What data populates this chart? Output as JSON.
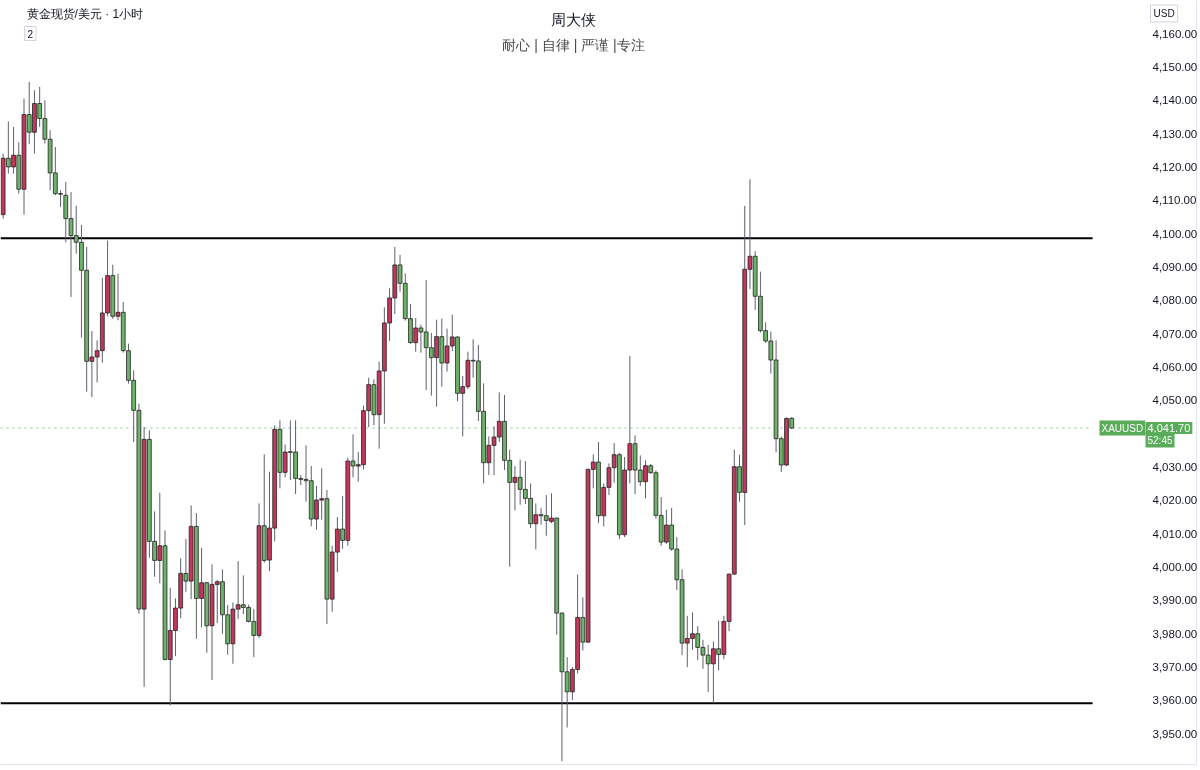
{
  "chart_data": {
    "type": "candlestick",
    "title": "周大侠",
    "subtitle": "耐心 | 自律 | 严谨 |专注",
    "ylabel": "USD",
    "annotations": [
      "黄金现货/美元 · 1小时",
      "2",
      {
        "text": "4,041.70",
        "y": 4041.7
      },
      {
        "text": "52:45",
        "y": 4041.7
      }
    ],
    "categories": [
      null,
      null,
      null,
      null,
      null,
      null,
      null,
      null,
      null,
      null,
      null,
      null,
      null,
      null,
      null,
      null,
      null,
      null,
      null,
      null,
      null,
      null,
      null,
      null,
      null,
      null,
      null,
      null,
      null,
      null,
      null,
      null,
      null,
      null,
      null,
      null,
      null,
      null,
      null,
      null,
      null,
      null,
      null,
      null,
      null,
      null,
      null,
      null,
      null,
      null,
      null,
      null,
      null,
      null,
      null,
      null,
      null,
      null,
      null,
      null,
      null,
      null,
      null,
      null,
      null,
      null,
      null,
      null,
      null,
      null,
      null,
      null,
      null,
      null,
      null,
      null,
      null,
      null,
      null,
      null,
      null,
      null,
      null,
      null,
      null,
      null,
      null,
      null,
      null,
      null,
      null,
      null,
      null,
      null,
      null,
      null,
      null,
      null,
      null,
      null,
      null,
      null,
      null,
      null,
      null,
      null,
      null,
      null,
      null,
      null,
      null,
      null,
      null,
      null,
      null,
      null,
      null,
      null,
      null,
      null,
      null,
      null,
      null,
      null,
      null,
      null,
      null,
      null,
      null,
      null,
      null,
      null,
      null,
      null,
      null,
      null,
      null,
      null,
      null,
      null,
      null,
      null,
      null,
      null,
      null,
      null,
      null,
      null,
      null,
      null,
      null,
      null,
      null,
      null,
      null,
      null,
      null,
      null,
      null,
      null,
      null,
      null,
      null,
      null,
      null,
      null,
      null,
      null,
      null,
      null,
      null,
      null,
      null,
      null,
      null,
      null,
      null,
      null,
      null,
      null,
      null,
      null,
      null,
      null,
      null,
      null,
      null,
      null,
      null,
      null,
      null,
      null,
      null,
      null,
      null,
      null,
      null,
      null,
      null,
      null,
      null,
      null,
      null,
      null,
      null,
      null,
      null,
      null,
      null,
      null,
      null,
      null,
      null,
      null,
      null,
      null,
      null,
      null,
      null,
      null,
      null,
      null,
      null,
      null,
      null,
      null,
      null,
      null,
      null
    ],
    "ohlc": [
      [
        4105.7,
        4124,
        4104.5,
        4122.6
      ],
      [
        4122.6,
        4133.6,
        4118,
        4120
      ],
      [
        4120,
        4132,
        4118,
        4123.5
      ],
      [
        4123.5,
        4127.4,
        4112,
        4113.3
      ],
      [
        4113.3,
        4140.5,
        4105.7,
        4135.7
      ],
      [
        4135.7,
        4145.5,
        4126.8,
        4130.4
      ],
      [
        4130.4,
        4143,
        4124,
        4139
      ],
      [
        4139,
        4144,
        4132,
        4134.5
      ],
      [
        4134.5,
        4140,
        4127,
        4128.3
      ],
      [
        4128.3,
        4131,
        4113,
        4118.2
      ],
      [
        4118.2,
        4126,
        4111.5,
        4112
      ],
      [
        4112,
        4113,
        4108,
        4111.8
      ],
      [
        4111.5,
        4115.5,
        4097.4,
        4104.5
      ],
      [
        4104.5,
        4112.5,
        4081,
        4099.4
      ],
      [
        4099.4,
        4108.3,
        4094,
        4097.4
      ],
      [
        4097.4,
        4102.6,
        4068.8,
        4089
      ],
      [
        4089,
        4096,
        4052.6,
        4061.7
      ],
      [
        4061.7,
        4070.8,
        4051,
        4063
      ],
      [
        4063,
        4068,
        4055.4,
        4064.9
      ],
      [
        4064.9,
        4086.7,
        4061.3,
        4076.2
      ],
      [
        4076.2,
        4097.9,
        4075.2,
        4087.4
      ],
      [
        4087.4,
        4090.7,
        4074.4,
        4075.2
      ],
      [
        4075.2,
        4088,
        4074,
        4076.4
      ],
      [
        4076.4,
        4079.5,
        4064.3,
        4064.9
      ],
      [
        4064.9,
        4067,
        4055,
        4056
      ],
      [
        4056,
        4059,
        4037.5,
        4047
      ],
      [
        4047,
        4049,
        3986,
        3987.4
      ],
      [
        3987.4,
        4042,
        3964.1,
        4038.3
      ],
      [
        4038.3,
        4041,
        4002.8,
        4007.7
      ],
      [
        4007.7,
        4016.7,
        3997.1,
        4002
      ],
      [
        4002,
        4022.3,
        3995.1,
        4006.4
      ],
      [
        4006.4,
        4011,
        3972,
        3972.3
      ],
      [
        3972.3,
        3993.8,
        3958.5,
        3981
      ],
      [
        3981,
        3990.6,
        3973.3,
        3987.7
      ],
      [
        3987.7,
        4002.6,
        3984.7,
        3998.1
      ],
      [
        3998.1,
        4008.4,
        3992.6,
        3995.8
      ],
      [
        3995.8,
        4018.5,
        3990.4,
        4012.2
      ],
      [
        4012.2,
        4016.2,
        3978.5,
        3990.6
      ],
      [
        3990.6,
        4005.8,
        3981.9,
        3995.3
      ],
      [
        3995.3,
        3995.5,
        3974.3,
        3982.4
      ],
      [
        3982.4,
        4000.8,
        3966.1,
        3994.8
      ],
      [
        3994.8,
        3996.1,
        3983.2,
        3995.6
      ],
      [
        3995.6,
        3999.3,
        3980,
        3985.7
      ],
      [
        3985.7,
        3988.6,
        3973.7,
        3977
      ],
      [
        3977,
        3989.4,
        3971,
        3987.4
      ],
      [
        3987.4,
        4001.8,
        3984.4,
        3988.7
      ],
      [
        3988.7,
        3997.5,
        3985.9,
        3987.9
      ],
      [
        3987.9,
        3988.7,
        3983.4,
        3983.7
      ],
      [
        3983.7,
        3987.4,
        3973,
        3979.5
      ],
      [
        3979.5,
        4019.1,
        3978.7,
        4012.4
      ],
      [
        4012.4,
        4033.8,
        4001.3,
        4002
      ],
      [
        4002.1,
        4028.6,
        3998.8,
        4011.7
      ],
      [
        4011.7,
        4042.5,
        4007.7,
        4041.3
      ],
      [
        4041.3,
        4044,
        4023.6,
        4028.4
      ],
      [
        4028.4,
        4036.8,
        4026.9,
        4034.5
      ],
      [
        4034.6,
        4044,
        4026.1,
        4034.4
      ],
      [
        4034.5,
        4044,
        4021.9,
        4026.6
      ],
      [
        4026.6,
        4027.6,
        4024.6,
        4026.3
      ],
      [
        4026.3,
        4036.5,
        4019.6,
        4025.9
      ],
      [
        4025.9,
        4030.3,
        4012.2,
        4014.4
      ],
      [
        4014.4,
        4024.3,
        4011.2,
        4020.1
      ],
      [
        4020.1,
        4029.6,
        4014.2,
        4020.5
      ],
      [
        4020.5,
        4023.1,
        3982.9,
        3990.4
      ],
      [
        3990.4,
        4006.4,
        3986.6,
        4004.5
      ],
      [
        4004.5,
        4015,
        3998.5,
        4011.4
      ],
      [
        4011.4,
        4021.3,
        4005.5,
        4008
      ],
      [
        4008,
        4032.8,
        4006.4,
        4031.8
      ],
      [
        4031.8,
        4039.8,
        4026.9,
        4030.3
      ],
      [
        4030.3,
        4034.5,
        4025.6,
        4030.7
      ],
      [
        4030.7,
        4048.4,
        4029.3,
        4046.9
      ],
      [
        4046.9,
        4056.8,
        4042,
        4054.7
      ],
      [
        4054.7,
        4056.3,
        4042.5,
        4045.7
      ],
      [
        4045.7,
        4061.6,
        4035.5,
        4058.8
      ],
      [
        4058.8,
        4077.9,
        4043,
        4073.2
      ],
      [
        4073.2,
        4083.6,
        4067.8,
        4080.7
      ],
      [
        4080.7,
        4096,
        4075.9,
        4090.6
      ],
      [
        4090.6,
        4093.6,
        4082.6,
        4085.1
      ],
      [
        4085.1,
        4088.1,
        4073.9,
        4074.5
      ],
      [
        4074.5,
        4078.9,
        4067,
        4067.3
      ],
      [
        4067.3,
        4074.7,
        4064.6,
        4071.7
      ],
      [
        4071.7,
        4072.7,
        4064.3,
        4070.5
      ],
      [
        4070.5,
        4086.1,
        4053.1,
        4065.8
      ],
      [
        4065.8,
        4070.2,
        4051.4,
        4062.8
      ],
      [
        4062.8,
        4074.2,
        4048.1,
        4069.1
      ],
      [
        4069.1,
        4074.5,
        4054.1,
        4061.2
      ],
      [
        4061.2,
        4071.5,
        4058.6,
        4066.3
      ],
      [
        4066.3,
        4075.7,
        4064.8,
        4069
      ],
      [
        4069,
        4069.2,
        4049.7,
        4052.1
      ],
      [
        4052.1,
        4057.3,
        4039.2,
        4054.1
      ],
      [
        4054.1,
        4064.6,
        4053.4,
        4062
      ],
      [
        4062,
        4068.3,
        4056.8,
        4061.8
      ],
      [
        4061.8,
        4066.6,
        4043.8,
        4046.7
      ],
      [
        4046.7,
        4055.1,
        4025.1,
        4031.3
      ],
      [
        4031.3,
        4039.2,
        4027.6,
        4036.5
      ],
      [
        4036.5,
        4042.2,
        4027.6,
        4039
      ],
      [
        4039,
        4052.4,
        4037.5,
        4043.7
      ],
      [
        4043.7,
        4051.6,
        4029.1,
        4032
      ],
      [
        4032,
        4035.2,
        4000.1,
        4025.4
      ],
      [
        4025.4,
        4030.3,
        4017,
        4026.9
      ],
      [
        4026.9,
        4032.2,
        4018.7,
        4023.3
      ],
      [
        4023.3,
        4031.8,
        4018.9,
        4020.6
      ],
      [
        4020.6,
        4025.1,
        4011.7,
        4013
      ],
      [
        4013,
        4019.1,
        4005.3,
        4015.7
      ],
      [
        4015.7,
        4017.7,
        4012.7,
        4015.4
      ],
      [
        4015.4,
        4021.6,
        4009.4,
        4014
      ],
      [
        4013.7,
        4022.1,
        4013.2,
        4014.7
      ],
      [
        4014.7,
        4014.8,
        3979.7,
        3986.2
      ],
      [
        3986.2,
        3986.4,
        3941.8,
        3968.6
      ],
      [
        3968.6,
        3973,
        3951.9,
        3962.6
      ],
      [
        3962.6,
        3970,
        3960.1,
        3969.3
      ],
      [
        3969.3,
        3997.8,
        3968.1,
        3984.9
      ],
      [
        3984.9,
        3990.9,
        3975,
        3977.5
      ],
      [
        3977.5,
        4029.5,
        3977.3,
        4029.3
      ],
      [
        4029.3,
        4033.8,
        4023.6,
        4031.5
      ],
      [
        4031.5,
        4037.5,
        4013.2,
        4015.4
      ],
      [
        4015.4,
        4025.1,
        4012.2,
        4023.9
      ],
      [
        4023.9,
        4031.1,
        4021.6,
        4029.8
      ],
      [
        4029.8,
        4037.2,
        4025.3,
        4033.7
      ],
      [
        4033.7,
        4034.2,
        4008.4,
        4009.7
      ],
      [
        4009.7,
        4033,
        4009,
        4029.1
      ],
      [
        4029.1,
        4063.3,
        4025.1,
        4037
      ],
      [
        4037,
        4039.5,
        4021.9,
        4029.1
      ],
      [
        4029.1,
        4033.5,
        4024.3,
        4025.6
      ],
      [
        4025.6,
        4032,
        4020.6,
        4030.4
      ],
      [
        4030.4,
        4030.9,
        4028,
        4028.3
      ],
      [
        4028.3,
        4029,
        4014.5,
        4015.5
      ],
      [
        4015.5,
        4021,
        4006.4,
        4007.5
      ],
      [
        4007.5,
        4017.2,
        4007,
        4012.6
      ],
      [
        4012.6,
        4017.7,
        4004.9,
        4005.4
      ],
      [
        4005.4,
        4009,
        3993.1,
        3996.2
      ],
      [
        3996.2,
        3999.3,
        3973.6,
        3977.2
      ],
      [
        3977.2,
        3985.4,
        3970,
        3978.6
      ],
      [
        3978.6,
        3986.4,
        3975.2,
        3980
      ],
      [
        3980,
        3982.3,
        3972.1,
        3975.9
      ],
      [
        3975.9,
        3978.2,
        3969.5,
        3973.6
      ],
      [
        3973.6,
        3976.7,
        3962.5,
        3971
      ],
      [
        3971,
        3977.7,
        3959.2,
        3975.5
      ],
      [
        3975.5,
        3983.9,
        3969,
        3973.8
      ],
      [
        3973.8,
        3985.4,
        3972.4,
        3983.7
      ],
      [
        3983.7,
        3998,
        3980.8,
        3997.9
      ],
      [
        3997.9,
        4035.2,
        3997.7,
        4030.1
      ],
      [
        4030.1,
        4033.7,
        4019.6,
        4022.4
      ],
      [
        4022.4,
        4108.3,
        4012.6,
        4089.3
      ],
      [
        4089.3,
        4116.3,
        4083.4,
        4093.2
      ],
      [
        4093.2,
        4094.7,
        4077.1,
        4081.2
      ],
      [
        4081.2,
        4088.6,
        4070.3,
        4070.9
      ],
      [
        4070.9,
        4073.4,
        4067.2,
        4067.8
      ],
      [
        4067.8,
        4070.6,
        4058,
        4062.1
      ],
      [
        4062.1,
        4068,
        4034.4,
        4038.5
      ],
      [
        4038.5,
        4039.1,
        4028.5,
        4030.6
      ],
      [
        4030.6,
        4044.8,
        4030.4,
        4044.6
      ],
      [
        4044.6,
        4045,
        4041.4,
        4041.7
      ],
      null,
      null,
      null,
      null,
      null,
      null,
      null,
      null,
      null,
      null,
      null,
      null,
      null,
      null,
      null,
      null,
      null,
      null,
      null,
      null,
      null,
      null,
      null,
      null,
      null,
      null,
      null,
      null,
      null,
      null,
      null,
      null,
      null,
      null,
      null,
      null,
      null,
      null,
      null,
      null,
      null,
      null,
      null,
      null,
      null,
      null,
      null,
      null,
      null,
      null,
      null,
      null,
      null,
      null,
      null,
      null,
      null,
      null,
      null,
      null,
      null,
      null,
      null,
      null,
      null,
      null,
      null,
      null,
      null,
      null,
      null,
      null,
      null,
      null,
      null,
      null,
      null
    ],
    "colors": [
      "#c2375b",
      "#6db36a",
      "#c2375b",
      "#6db36a",
      "#c2375b",
      "#6db36a",
      "#c2375b",
      "#6db36a",
      "#6db36a",
      "#6db36a",
      "#6db36a",
      "#6db36a",
      "#6db36a",
      "#6db36a",
      "#6db36a",
      "#6db36a",
      "#6db36a",
      "#c2375b",
      "#c2375b",
      "#c2375b",
      "#c2375b",
      "#6db36a",
      "#c2375b",
      "#6db36a",
      "#6db36a",
      "#6db36a",
      "#6db36a",
      "#c2375b",
      "#6db36a",
      "#6db36a",
      "#c2375b",
      "#6db36a",
      "#c2375b",
      "#c2375b",
      "#c2375b",
      "#6db36a",
      "#c2375b",
      "#6db36a",
      "#c2375b",
      "#6db36a",
      "#c2375b",
      "#c2375b",
      "#6db36a",
      "#6db36a",
      "#c2375b",
      "#c2375b",
      "#6db36a",
      "#6db36a",
      "#6db36a",
      "#c2375b",
      "#6db36a",
      "#c2375b",
      "#c2375b",
      "#6db36a",
      "#c2375b",
      "#6db36a",
      "#6db36a",
      "#6db36a",
      "#6db36a",
      "#6db36a",
      "#c2375b",
      "#c2375b",
      "#6db36a",
      "#c2375b",
      "#c2375b",
      "#6db36a",
      "#c2375b",
      "#6db36a",
      "#c2375b",
      "#c2375b",
      "#c2375b",
      "#6db36a",
      "#c2375b",
      "#c2375b",
      "#c2375b",
      "#c2375b",
      "#6db36a",
      "#6db36a",
      "#6db36a",
      "#c2375b",
      "#6db36a",
      "#6db36a",
      "#6db36a",
      "#c2375b",
      "#6db36a",
      "#c2375b",
      "#c2375b",
      "#6db36a",
      "#c2375b",
      "#c2375b",
      "#6db36a",
      "#6db36a",
      "#6db36a",
      "#c2375b",
      "#c2375b",
      "#c2375b",
      "#6db36a",
      "#6db36a",
      "#c2375b",
      "#6db36a",
      "#6db36a",
      "#6db36a",
      "#c2375b",
      "#6db36a",
      "#6db36a",
      "#c2375b",
      "#6db36a",
      "#6db36a",
      "#6db36a",
      "#c2375b",
      "#c2375b",
      "#6db36a",
      "#c2375b",
      "#c2375b",
      "#6db36a",
      "#c2375b",
      "#c2375b",
      "#c2375b",
      "#6db36a",
      "#c2375b",
      "#c2375b",
      "#6db36a",
      "#6db36a",
      "#c2375b",
      "#6db36a",
      "#6db36a",
      "#6db36a",
      "#c2375b",
      "#6db36a",
      "#6db36a",
      "#6db36a",
      "#c2375b",
      "#c2375b",
      "#6db36a",
      "#6db36a",
      "#6db36a",
      "#c2375b",
      "#6db36a",
      "#c2375b",
      "#c2375b",
      "#c2375b",
      "#6db36a",
      "#c2375b",
      "#c2375b",
      "#6db36a",
      "#6db36a",
      "#6db36a",
      "#6db36a",
      "#6db36a",
      "#6db36a",
      "#c2375b",
      "#6db36a",
      null,
      null,
      null,
      null,
      null,
      null,
      null,
      null,
      null,
      null,
      null,
      null,
      null,
      null,
      null,
      null,
      null,
      null,
      null,
      null,
      null,
      null,
      null,
      null,
      null,
      null,
      null,
      null,
      null,
      null,
      null,
      null,
      null,
      null,
      null,
      null,
      null,
      null,
      null,
      null,
      null,
      null,
      null,
      null,
      null,
      null,
      null,
      null,
      null,
      null,
      null,
      null,
      null,
      null,
      null,
      null,
      null,
      null,
      null,
      null,
      null,
      null,
      null,
      null,
      null,
      null,
      null,
      null,
      null,
      null,
      null,
      null,
      null,
      null,
      null,
      null,
      null
    ],
    "ylim": [
      3940.8,
      4169.9
    ],
    "yticks": [
      {
        "value": 3950,
        "label": "3,950.00"
      },
      {
        "value": 3960,
        "label": "3,960.00"
      },
      {
        "value": 3970,
        "label": "3,970.00"
      },
      {
        "value": 3980,
        "label": "3,980.00"
      },
      {
        "value": 3990,
        "label": "3,990.00"
      },
      {
        "value": 4000,
        "label": "4,000.00"
      },
      {
        "value": 4010,
        "label": "4,010.00"
      },
      {
        "value": 4020,
        "label": "4,020.00"
      },
      {
        "value": 4030,
        "label": "4,030.00"
      },
      {
        "value": 4050,
        "label": "4,050.00"
      },
      {
        "value": 4060,
        "label": "4,060.00"
      },
      {
        "value": 4070,
        "label": "4,070.00"
      },
      {
        "value": 4080,
        "label": "4,080.00"
      },
      {
        "value": 4090,
        "label": "4,090.00"
      },
      {
        "value": 4100,
        "label": "4,100.00"
      },
      {
        "value": 4110,
        "label": "4,110.00"
      },
      {
        "value": 4120,
        "label": "4,120.00"
      },
      {
        "value": 4130,
        "label": "4,130.00"
      },
      {
        "value": 4140,
        "label": "4,140.00"
      },
      {
        "value": 4150,
        "label": "4,150.00"
      },
      {
        "value": 4160,
        "label": "4,160.00"
      }
    ],
    "tick_labels": "y",
    "ref_lines": [
      {
        "axis": "y",
        "value": 4098.6,
        "color": "#000000",
        "line_style": "solid"
      },
      {
        "axis": "y",
        "value": 3959.2,
        "color": "#000000",
        "line_style": "solid"
      },
      {
        "axis": "y",
        "value": 4041.7,
        "label": "XAUUSD",
        "color": "#5aab5a",
        "line_style": "dotted"
      }
    ]
  }
}
